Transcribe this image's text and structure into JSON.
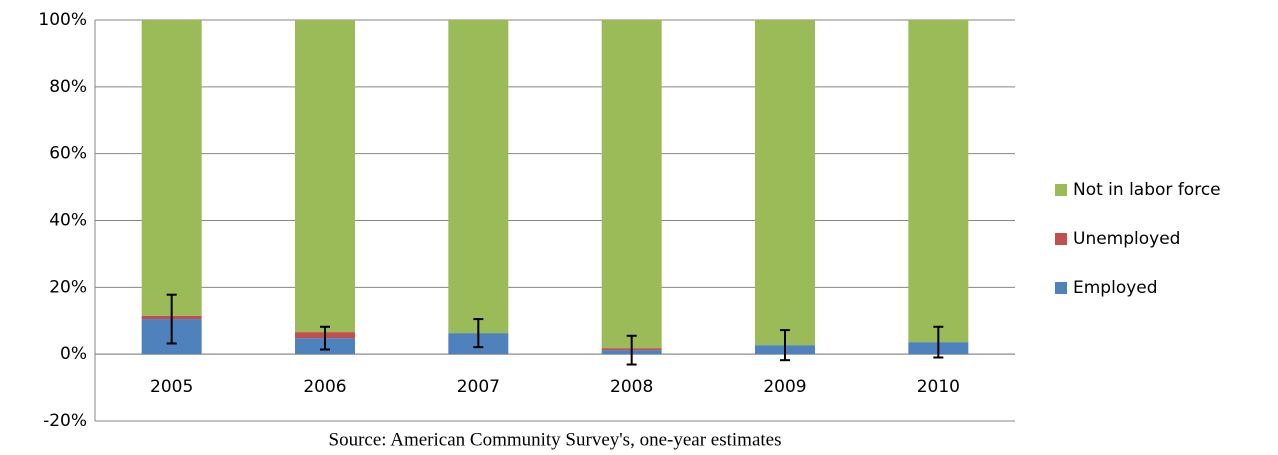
{
  "chart_data": {
    "type": "stacked_bar",
    "caption": "Source: American Community Survey's, one-year estimates",
    "categories": [
      "2005",
      "2006",
      "2007",
      "2008",
      "2009",
      "2010"
    ],
    "series": [
      {
        "name": "Employed",
        "color": "#4f81bd",
        "values": [
          10.5,
          4.8,
          6.3,
          1.2,
          2.7,
          3.6
        ],
        "errors": [
          7.3,
          3.4,
          4.2,
          4.3,
          4.5,
          4.6
        ]
      },
      {
        "name": "Unemployed",
        "color": "#c0504d",
        "values": [
          1,
          1.8,
          0,
          0.6,
          0,
          0
        ]
      },
      {
        "name": "Not in labor force",
        "color": "#9bbb59",
        "values": [
          88.5,
          93.4,
          93.7,
          98.2,
          97.3,
          96.4
        ]
      }
    ],
    "ylim": [
      -20,
      100
    ],
    "yticks": [
      {
        "value": -20,
        "label": "-20%"
      },
      {
        "value": 0,
        "label": "0%"
      },
      {
        "value": 20,
        "label": "20%"
      },
      {
        "value": 40,
        "label": "40%"
      },
      {
        "value": 60,
        "label": "60%"
      },
      {
        "value": 80,
        "label": "80%"
      },
      {
        "value": 100,
        "label": "100%"
      }
    ],
    "grid": true,
    "legend": "right"
  }
}
